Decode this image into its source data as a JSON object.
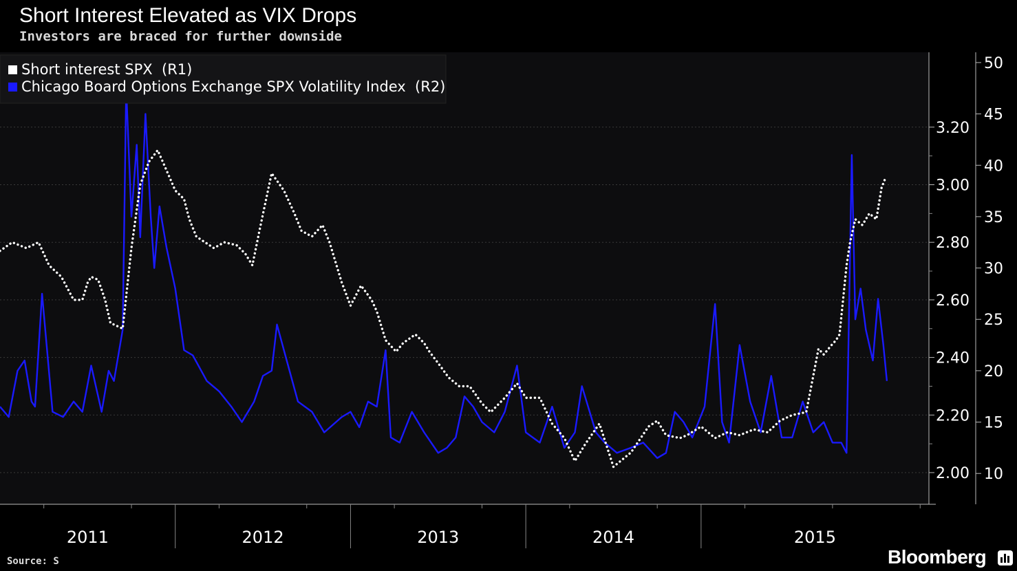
{
  "header": {
    "title": "Short Interest Elevated as VIX Drops",
    "subtitle": "Investors are braced for further downside"
  },
  "footer": {
    "source": "Source: S",
    "brand": "Bloomberg"
  },
  "colors": {
    "background": "#000000",
    "plot_background": "#0d0d0f",
    "short_interest": "#ffffff",
    "vix": "#1a1aff",
    "grid": "#3a3a3a"
  },
  "chart_data": {
    "type": "line",
    "title": "Short Interest Elevated as VIX Drops",
    "subtitle": "Investors are braced for further downside",
    "x_labels": [
      "2011",
      "2012",
      "2013",
      "2014",
      "2015"
    ],
    "xlim": [
      2010.5,
      2015.8
    ],
    "right_axis_1": {
      "label": "R1",
      "ylim": [
        1.89,
        3.46
      ],
      "ticks": [
        2.0,
        2.2,
        2.4,
        2.6,
        2.8,
        3.0,
        3.2
      ],
      "tick_labels": [
        "2.00",
        "2.20",
        "2.40",
        "2.60",
        "2.80",
        "3.00",
        "3.20"
      ]
    },
    "right_axis_2": {
      "label": "R2",
      "ylim": [
        7.0,
        51.0
      ],
      "ticks": [
        10,
        15,
        20,
        25,
        30,
        35,
        40,
        45,
        50
      ],
      "tick_labels": [
        "10",
        "15",
        "20",
        "25",
        "30",
        "35",
        "40",
        "45",
        "50"
      ]
    },
    "legend": {
      "position": "top-left"
    },
    "series": [
      {
        "name": "Short interest SPX",
        "axis": "R1",
        "legend_label": "Short interest SPX  (R1)",
        "style": "dotted",
        "x": [
          2010.5,
          2010.57,
          2010.65,
          2010.72,
          2010.78,
          2010.85,
          2010.92,
          2010.97,
          2011.0,
          2011.02,
          2011.06,
          2011.1,
          2011.13,
          2011.2,
          2011.25,
          2011.3,
          2011.35,
          2011.4,
          2011.45,
          2011.5,
          2011.55,
          2011.58,
          2011.62,
          2011.67,
          2011.72,
          2011.78,
          2011.85,
          2011.9,
          2011.94,
          2011.98,
          2012.05,
          2012.12,
          2012.18,
          2012.22,
          2012.28,
          2012.34,
          2012.38,
          2012.45,
          2012.5,
          2012.56,
          2012.62,
          2012.65,
          2012.7,
          2012.76,
          2012.8,
          2012.87,
          2012.92,
          2012.95,
          2013.0,
          2013.06,
          2013.12,
          2013.18,
          2013.25,
          2013.3,
          2013.38,
          2013.45,
          2013.5,
          2013.58,
          2013.65,
          2013.72,
          2013.78,
          2013.84,
          2013.92,
          2014.0,
          2014.1,
          2014.2,
          2014.25,
          2014.3,
          2014.38,
          2014.42,
          2014.5,
          2014.58,
          2014.65,
          2014.72,
          2014.8,
          2014.88,
          2014.95,
          2015.02,
          2015.1,
          2015.17,
          2015.2,
          2015.24,
          2015.27,
          2015.29,
          2015.33,
          2015.35,
          2015.38,
          2015.42,
          2015.46,
          2015.5,
          2015.53,
          2015.55
        ],
        "values": [
          2.77,
          2.8,
          2.78,
          2.8,
          2.72,
          2.68,
          2.6,
          2.6,
          2.66,
          2.68,
          2.67,
          2.6,
          2.52,
          2.5,
          2.78,
          3.0,
          3.08,
          3.12,
          3.05,
          2.98,
          2.95,
          2.88,
          2.82,
          2.8,
          2.78,
          2.8,
          2.79,
          2.76,
          2.72,
          2.84,
          3.04,
          2.98,
          2.9,
          2.84,
          2.82,
          2.86,
          2.8,
          2.66,
          2.58,
          2.65,
          2.6,
          2.56,
          2.46,
          2.42,
          2.45,
          2.48,
          2.45,
          2.42,
          2.38,
          2.33,
          2.3,
          2.3,
          2.24,
          2.21,
          2.26,
          2.31,
          2.26,
          2.26,
          2.17,
          2.12,
          2.04,
          2.1,
          2.17,
          2.02,
          2.07,
          2.16,
          2.18,
          2.13,
          2.12,
          2.13,
          2.16,
          2.12,
          2.14,
          2.13,
          2.15,
          2.14,
          2.18,
          2.2,
          2.21,
          2.43,
          2.41,
          2.44,
          2.46,
          2.48,
          2.72,
          2.8,
          2.88,
          2.86,
          2.9,
          2.88,
          2.99,
          3.02
        ]
      },
      {
        "name": "Chicago Board Options Exchange SPX Volatility Index",
        "axis": "R2",
        "legend_label": "Chicago Board Options Exchange SPX Volatility Index  (R2)",
        "style": "line",
        "x": [
          2010.5,
          2010.55,
          2010.6,
          2010.64,
          2010.68,
          2010.7,
          2010.74,
          2010.8,
          2010.86,
          2010.92,
          2010.97,
          2011.02,
          2011.08,
          2011.12,
          2011.15,
          2011.2,
          2011.22,
          2011.25,
          2011.28,
          2011.3,
          2011.33,
          2011.36,
          2011.38,
          2011.41,
          2011.45,
          2011.5,
          2011.55,
          2011.6,
          2011.68,
          2011.75,
          2011.82,
          2011.88,
          2011.95,
          2012.0,
          2012.05,
          2012.08,
          2012.12,
          2012.2,
          2012.28,
          2012.35,
          2012.45,
          2012.5,
          2012.55,
          2012.6,
          2012.65,
          2012.7,
          2012.73,
          2012.78,
          2012.85,
          2012.92,
          2013.0,
          2013.05,
          2013.1,
          2013.15,
          2013.2,
          2013.25,
          2013.32,
          2013.38,
          2013.45,
          2013.5,
          2013.58,
          2013.65,
          2013.72,
          2013.78,
          2013.82,
          2013.9,
          2013.95,
          2014.02,
          2014.1,
          2014.17,
          2014.25,
          2014.3,
          2014.35,
          2014.4,
          2014.45,
          2014.52,
          2014.58,
          2014.62,
          2014.66,
          2014.72,
          2014.78,
          2014.84,
          2014.9,
          2014.96,
          2015.02,
          2015.08,
          2015.14,
          2015.2,
          2015.25,
          2015.3,
          2015.33,
          2015.36,
          2015.38,
          2015.41,
          2015.44,
          2015.48,
          2015.51,
          2015.54,
          2015.56
        ],
        "values": [
          16.5,
          15.5,
          20.0,
          21.0,
          17.0,
          16.5,
          27.5,
          16.0,
          15.5,
          17.0,
          16.0,
          20.5,
          16.0,
          20.0,
          19.0,
          24.0,
          47.5,
          35.0,
          42.0,
          33.0,
          45.0,
          35.0,
          30.0,
          36.0,
          32.0,
          28.0,
          22.0,
          21.5,
          19.0,
          18.0,
          16.5,
          15.0,
          17.0,
          19.5,
          20.0,
          24.5,
          22.0,
          17.0,
          16.0,
          14.0,
          15.5,
          16.0,
          14.5,
          17.0,
          16.5,
          22.0,
          13.5,
          13.0,
          16.0,
          14.0,
          12.0,
          12.5,
          13.5,
          17.5,
          16.5,
          15.0,
          14.0,
          16.0,
          20.5,
          14.0,
          13.0,
          16.5,
          12.5,
          14.0,
          18.5,
          14.0,
          13.0,
          12.0,
          12.5,
          13.0,
          11.5,
          12.0,
          16.0,
          15.0,
          13.5,
          16.5,
          26.5,
          15.0,
          13.0,
          22.5,
          17.0,
          14.0,
          19.5,
          13.5,
          13.5,
          17.0,
          14.0,
          15.0,
          13.0,
          13.0,
          12.0,
          41.0,
          25.0,
          28.0,
          24.0,
          21.0,
          27.0,
          22.5,
          19.0
        ]
      }
    ]
  }
}
